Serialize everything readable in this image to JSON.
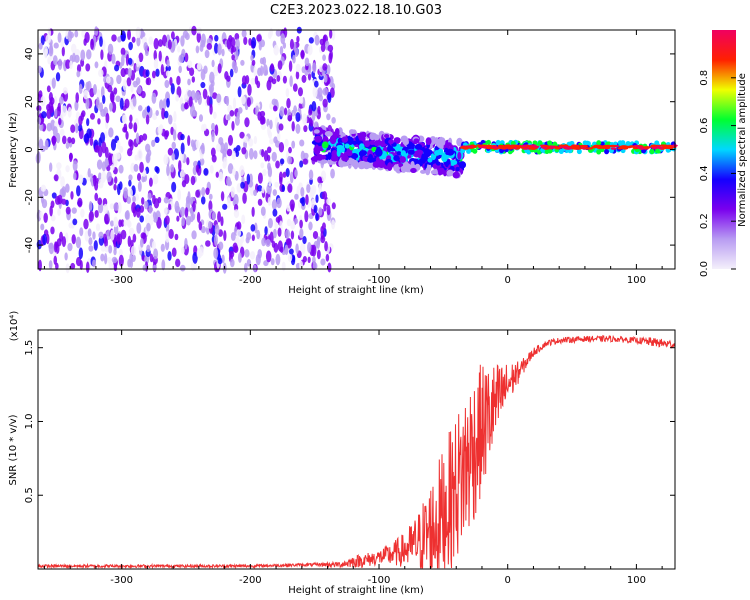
{
  "title": "C2E3.2023.022.18.10.G03",
  "chart_data": [
    {
      "type": "heatmap",
      "xlabel": "Height of straight line (km)",
      "ylabel": "Frequency (Hz)",
      "xlim": [
        -365,
        130
      ],
      "ylim": [
        -50,
        50
      ],
      "xticks": [
        -300,
        -200,
        -100,
        0,
        100
      ],
      "xtick_labels": [
        "-300",
        "-200",
        "-100",
        "0",
        "100"
      ],
      "yticks": [
        40,
        20,
        0,
        -20,
        -40
      ],
      "ytick_labels": [
        "40",
        "20",
        "0",
        "-20",
        "-40"
      ],
      "colorbar": {
        "label": "Normalized spectral amplitude",
        "range": [
          0,
          1
        ],
        "ticks": [
          0.0,
          0.2,
          0.4,
          0.6,
          0.8
        ],
        "tick_labels": [
          "0.0",
          "0.2",
          "0.4",
          "0.6",
          "0.8"
        ],
        "colormap": [
          "#f4f0fb",
          "#b89cf2",
          "#7a00ee",
          "#1400ff",
          "#00d8ff",
          "#00ff30",
          "#f0ff00",
          "#ff2000",
          "#f00060"
        ]
      },
      "regions": [
        {
          "name": "noise",
          "x": [
            -365,
            -150
          ],
          "y": [
            -50,
            50
          ],
          "level": 0.15
        },
        {
          "name": "transition",
          "x": [
            -150,
            -35
          ],
          "y_center": [
            2,
            -4
          ],
          "level": 0.55
        },
        {
          "name": "signal",
          "x": [
            -35,
            130
          ],
          "y_center": [
            1,
            1
          ],
          "level": 0.9
        }
      ]
    },
    {
      "type": "line",
      "xlabel": "Height of straight line (km)",
      "ylabel": "SNR (10 * v/v)",
      "y_multiplier": "(x10⁴)",
      "xlim": [
        -365,
        130
      ],
      "ylim": [
        0,
        1.62
      ],
      "xticks": [
        -300,
        -200,
        -100,
        0,
        100
      ],
      "xtick_labels": [
        "-300",
        "-200",
        "-100",
        "0",
        "100"
      ],
      "yticks": [
        0.5,
        1.0,
        1.5
      ],
      "ytick_labels": [
        "0.5",
        "1.0",
        "1.5"
      ],
      "color": "#ee3030",
      "x": [
        -365,
        -300,
        -250,
        -200,
        -150,
        -130,
        -120,
        -110,
        -100,
        -90,
        -80,
        -70,
        -60,
        -50,
        -40,
        -30,
        -20,
        -10,
        0,
        10,
        20,
        30,
        40,
        60,
        80,
        100,
        110,
        120,
        130
      ],
      "y": [
        0.02,
        0.02,
        0.02,
        0.02,
        0.03,
        0.03,
        0.05,
        0.06,
        0.08,
        0.1,
        0.13,
        0.18,
        0.25,
        0.38,
        0.55,
        0.75,
        0.95,
        1.1,
        1.25,
        1.35,
        1.47,
        1.53,
        1.55,
        1.56,
        1.56,
        1.55,
        1.54,
        1.53,
        1.52
      ],
      "noise_amplitude": [
        0.01,
        0.01,
        0.01,
        0.01,
        0.01,
        0.02,
        0.04,
        0.05,
        0.05,
        0.08,
        0.12,
        0.2,
        0.35,
        0.45,
        0.5,
        0.55,
        0.45,
        0.3,
        0.15,
        0.06,
        0.03,
        0.02,
        0.02,
        0.02,
        0.02,
        0.02,
        0.03,
        0.03,
        0.03
      ]
    }
  ]
}
